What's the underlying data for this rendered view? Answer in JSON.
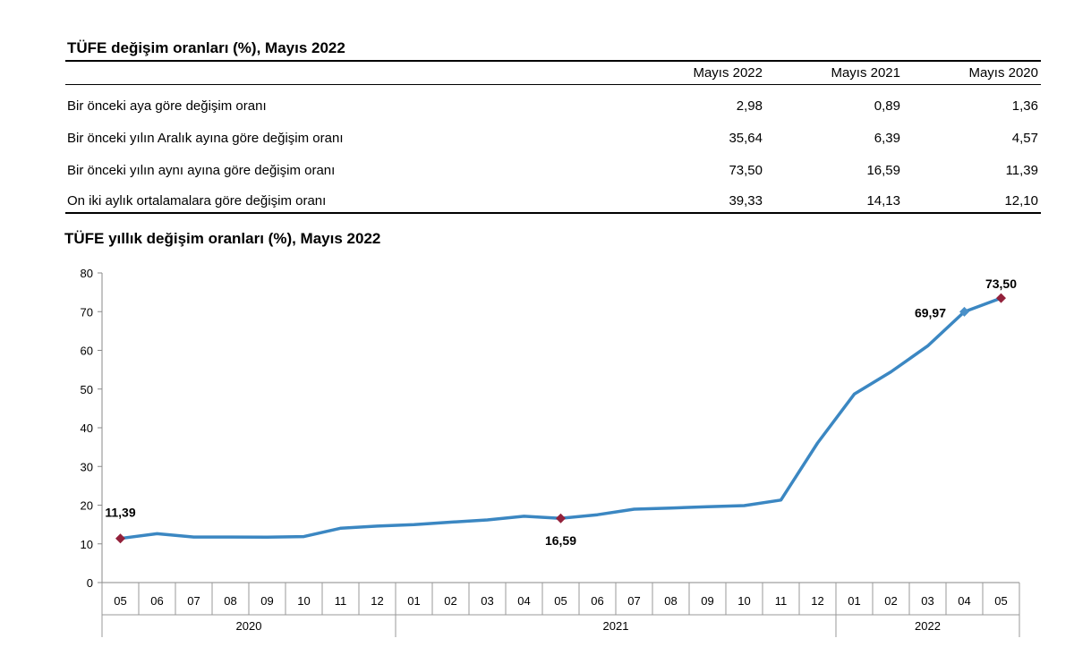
{
  "table": {
    "title": "TÜFE değişim oranları (%), Mayıs 2022",
    "columns": [
      "Mayıs 2022",
      "Mayıs 2021",
      "Mayıs 2020"
    ],
    "rows": [
      {
        "label": "Bir önceki aya göre değişim oranı",
        "values": [
          "2,98",
          "0,89",
          "1,36"
        ]
      },
      {
        "label": "Bir önceki yılın Aralık ayına göre değişim oranı",
        "values": [
          "35,64",
          "6,39",
          "4,57"
        ]
      },
      {
        "label": "Bir önceki yılın aynı ayına göre değişim oranı",
        "values": [
          "73,50",
          "16,59",
          "11,39"
        ]
      },
      {
        "label": "On iki aylık ortalamalara göre değişim oranı",
        "values": [
          "39,33",
          "14,13",
          "12,10"
        ]
      }
    ]
  },
  "chart_data": {
    "type": "line",
    "title": "TÜFE yıllık değişim oranları (%), Mayıs 2022",
    "xlabel": "",
    "ylabel": "",
    "ylim": [
      0,
      80
    ],
    "yticks": [
      "0",
      "10",
      "20",
      "30",
      "40",
      "50",
      "60",
      "70",
      "80"
    ],
    "categories": [
      "05",
      "06",
      "07",
      "08",
      "09",
      "10",
      "11",
      "12",
      "01",
      "02",
      "03",
      "04",
      "05",
      "06",
      "07",
      "08",
      "09",
      "10",
      "11",
      "12",
      "01",
      "02",
      "03",
      "04",
      "05"
    ],
    "years": [
      {
        "label": "2020",
        "start": 0,
        "end": 7
      },
      {
        "label": "2021",
        "start": 8,
        "end": 19
      },
      {
        "label": "2022",
        "start": 20,
        "end": 24
      }
    ],
    "series": [
      {
        "values": [
          11.39,
          12.62,
          11.76,
          11.77,
          11.75,
          11.89,
          14.03,
          14.6,
          14.97,
          15.61,
          16.19,
          17.14,
          16.59,
          17.53,
          18.95,
          19.25,
          19.58,
          19.89,
          21.31,
          36.08,
          48.69,
          54.44,
          61.14,
          69.97,
          73.5
        ]
      }
    ],
    "grid": false,
    "legend": "none",
    "line_color": "#3b87c2",
    "marker_color": "#93213b",
    "annotations": [
      {
        "index": 0,
        "label": "11,39",
        "marker": "diamond-red"
      },
      {
        "index": 12,
        "label": "16,59",
        "marker": "diamond-red"
      },
      {
        "index": 23,
        "label": "69,97",
        "marker": "diamond-blue"
      },
      {
        "index": 24,
        "label": "73,50",
        "marker": "diamond-red"
      }
    ]
  }
}
